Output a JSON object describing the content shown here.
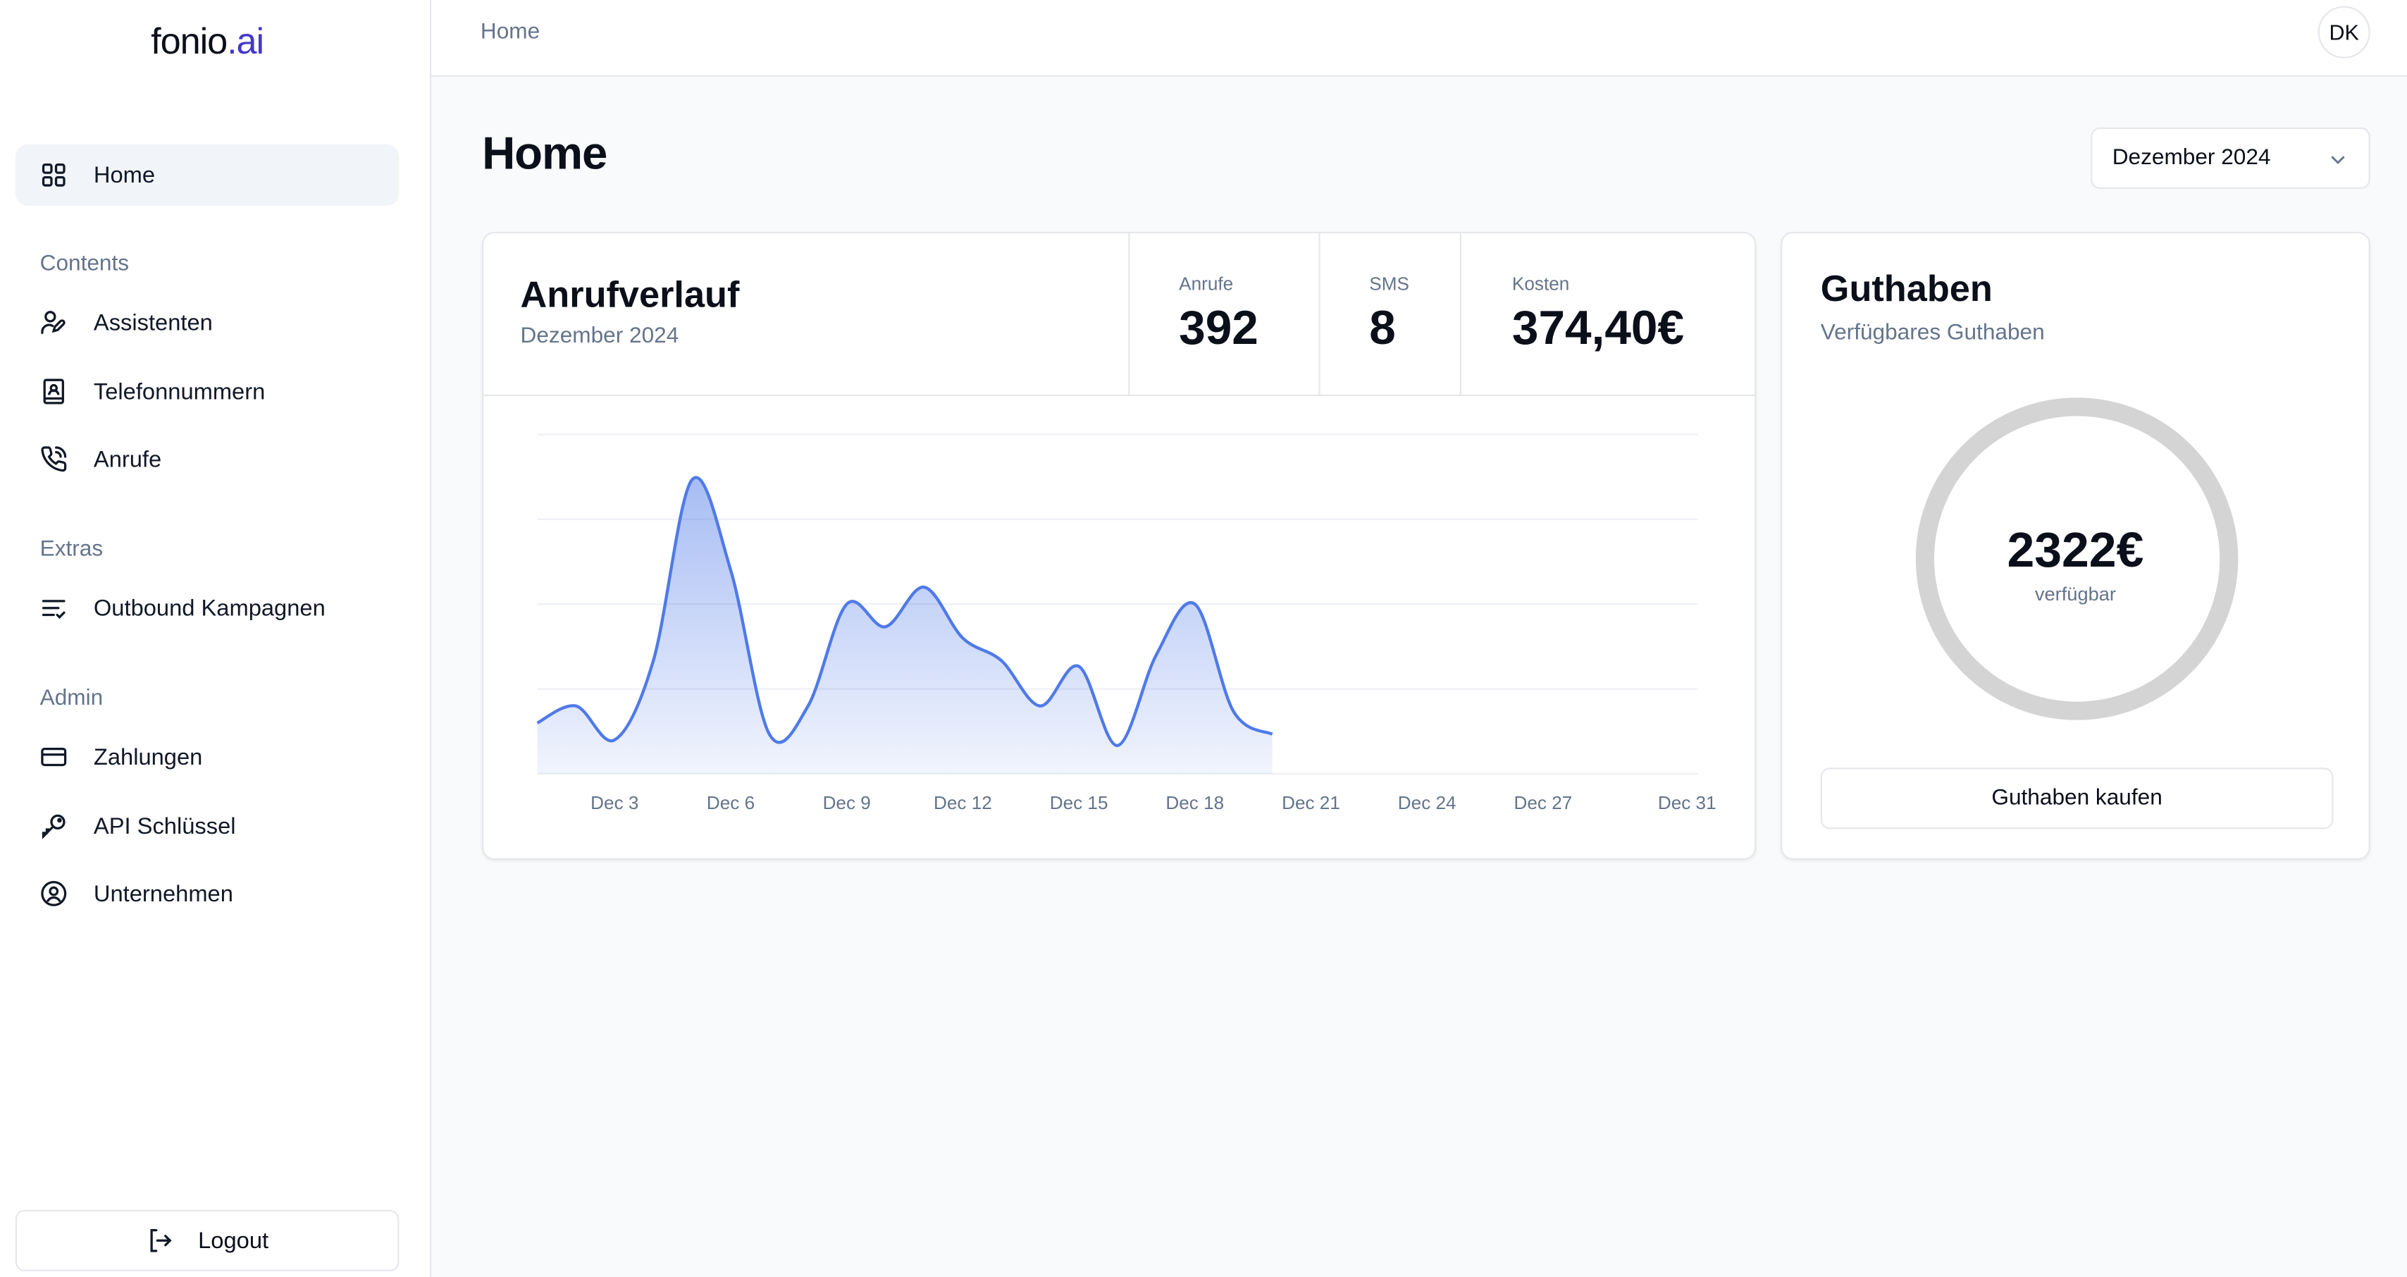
{
  "sidebar": {
    "logo": {
      "main": "fonio",
      "accent": ".ai"
    },
    "home": "Home",
    "sections": [
      {
        "title": "Contents",
        "items": [
          {
            "label": "Assistenten",
            "icon": "user-pen-icon"
          },
          {
            "label": "Telefonnummern",
            "icon": "contact-book-icon"
          },
          {
            "label": "Anrufe",
            "icon": "phone-call-icon"
          }
        ]
      },
      {
        "title": "Extras",
        "items": [
          {
            "label": "Outbound Kampagnen",
            "icon": "list-check-icon"
          }
        ]
      },
      {
        "title": "Admin",
        "items": [
          {
            "label": "Zahlungen",
            "icon": "credit-card-icon"
          },
          {
            "label": "API Schlüssel",
            "icon": "key-icon"
          },
          {
            "label": "Unternehmen",
            "icon": "user-circle-icon"
          }
        ]
      }
    ],
    "logout": "Logout"
  },
  "header": {
    "breadcrumb": "Home",
    "avatar": "DK"
  },
  "main": {
    "title": "Home",
    "month_select": "Dezember 2024",
    "calls_card": {
      "title": "Anrufverlauf",
      "subtitle": "Dezember 2024",
      "stats": [
        {
          "label": "Anrufe",
          "value": "392"
        },
        {
          "label": "SMS",
          "value": "8"
        },
        {
          "label": "Kosten",
          "value": "374,40€"
        }
      ]
    },
    "credit_card": {
      "title": "Guthaben",
      "subtitle": "Verfügbares Guthaben",
      "amount": "2322€",
      "amount_label": "verfügbar",
      "buy_button": "Guthaben kaufen"
    }
  },
  "colors": {
    "accent": "#4f7ae8",
    "logo_accent": "#4338ca",
    "ring": "#d4d4d4"
  },
  "chart_data": {
    "type": "area",
    "x": [
      "Dec 1",
      "Dec 2",
      "Dec 3",
      "Dec 4",
      "Dec 5",
      "Dec 6",
      "Dec 7",
      "Dec 8",
      "Dec 9",
      "Dec 10",
      "Dec 11",
      "Dec 12",
      "Dec 13",
      "Dec 14",
      "Dec 15",
      "Dec 16",
      "Dec 17",
      "Dec 18",
      "Dec 19",
      "Dec 20"
    ],
    "values": [
      9,
      12,
      6,
      20,
      52,
      36,
      7,
      12,
      30,
      26,
      33,
      24,
      20,
      12,
      19,
      5,
      21,
      30,
      11,
      7
    ],
    "xticks": [
      "Dec 3",
      "Dec 6",
      "Dec 9",
      "Dec 12",
      "Dec 15",
      "Dec 18",
      "Dec 21",
      "Dec 24",
      "Dec 27",
      "Dec 31"
    ],
    "xrange_days": [
      1,
      31
    ],
    "ylim": [
      0,
      60
    ],
    "grid": true,
    "yticks_visible": false
  }
}
